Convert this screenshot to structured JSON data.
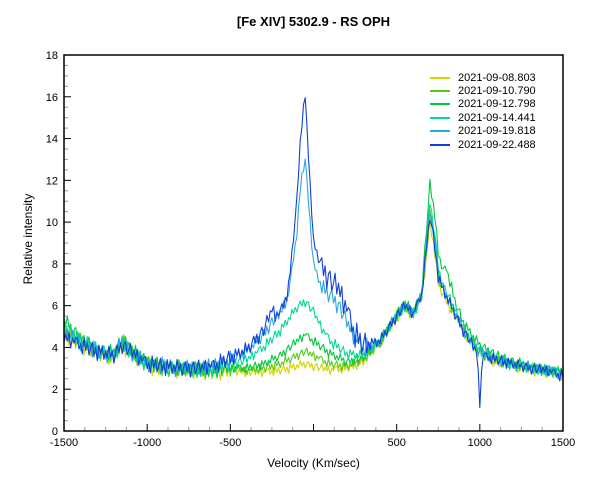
{
  "chart_data": {
    "type": "line",
    "title": "[Fe XIV] 5302.9 - RS OPH",
    "xlabel": "Velocity (Km/sec)",
    "ylabel": "Relative intensity",
    "legend_position": "top-right",
    "grid": false,
    "x_axis": {
      "min": -1500,
      "max": 1500,
      "major_step": 500,
      "minor_step": 125,
      "labeled_ticks": [
        -1500,
        -1000,
        -500,
        500,
        1000,
        1500
      ]
    },
    "y_axis": {
      "min": 0,
      "max": 18,
      "major_step": 2,
      "minor_step": 0.5,
      "labeled_ticks": [
        0,
        2,
        4,
        6,
        8,
        10,
        12,
        14,
        16,
        18
      ]
    },
    "sampling_step_kms": 10,
    "noise_table": [
      0.62,
      -0.48,
      0.2,
      -0.85,
      0.95,
      -0.3,
      0.55,
      -0.7,
      0.1,
      0.8,
      -0.55,
      0.35,
      -0.95,
      0.75,
      -0.15,
      0.6,
      -0.65,
      0.25,
      -0.4,
      0.9,
      -0.2,
      0.45,
      -0.75,
      0.15,
      0.7,
      -0.35,
      0.5,
      -0.9,
      0.3,
      0.65,
      -0.6,
      0.05,
      0.85,
      -0.45,
      0.4,
      -0.25,
      0.75,
      -0.8,
      0.35,
      -0.1,
      0.5
    ],
    "series": [
      {
        "name": "2021-09-08.803",
        "color": "#d4d400",
        "noise_offset": 0,
        "noise_zones": [
          [
            -1500,
            -500,
            0.42
          ],
          [
            -500,
            400,
            0.25
          ],
          [
            400,
            1500,
            0.3
          ]
        ],
        "anchors": [
          [
            -1500,
            4.6
          ],
          [
            -1400,
            4.1
          ],
          [
            -1300,
            3.7
          ],
          [
            -1200,
            3.5
          ],
          [
            -1150,
            4.0
          ],
          [
            -1100,
            3.7
          ],
          [
            -1000,
            3.1
          ],
          [
            -900,
            2.9
          ],
          [
            -800,
            2.9
          ],
          [
            -700,
            2.8
          ],
          [
            -600,
            2.8
          ],
          [
            -500,
            2.9
          ],
          [
            -400,
            2.8
          ],
          [
            -300,
            2.8
          ],
          [
            -200,
            2.9
          ],
          [
            -100,
            3.1
          ],
          [
            -50,
            3.2
          ],
          [
            0,
            3.1
          ],
          [
            100,
            2.9
          ],
          [
            200,
            3.0
          ],
          [
            300,
            3.3
          ],
          [
            400,
            4.2
          ],
          [
            500,
            5.4
          ],
          [
            550,
            5.9
          ],
          [
            600,
            5.5
          ],
          [
            650,
            6.4
          ],
          [
            675,
            8.0
          ],
          [
            700,
            10.0
          ],
          [
            725,
            8.8
          ],
          [
            750,
            7.0
          ],
          [
            775,
            6.6
          ],
          [
            800,
            6.2
          ],
          [
            850,
            5.5
          ],
          [
            900,
            4.8
          ],
          [
            950,
            4.2
          ],
          [
            1000,
            3.7
          ],
          [
            1100,
            3.3
          ],
          [
            1200,
            3.1
          ],
          [
            1300,
            2.9
          ],
          [
            1400,
            2.8
          ],
          [
            1500,
            2.7
          ]
        ]
      },
      {
        "name": "2021-09-10.790",
        "color": "#58cc14",
        "noise_offset": 9,
        "noise_zones": [
          [
            -1500,
            -500,
            0.42
          ],
          [
            -500,
            400,
            0.25
          ],
          [
            400,
            1500,
            0.3
          ]
        ],
        "anchors": [
          [
            -1500,
            4.9
          ],
          [
            -1400,
            4.3
          ],
          [
            -1300,
            3.8
          ],
          [
            -1200,
            3.6
          ],
          [
            -1150,
            4.3
          ],
          [
            -1100,
            3.8
          ],
          [
            -1000,
            3.2
          ],
          [
            -900,
            3.0
          ],
          [
            -800,
            3.0
          ],
          [
            -700,
            2.9
          ],
          [
            -600,
            2.9
          ],
          [
            -500,
            3.0
          ],
          [
            -400,
            2.9
          ],
          [
            -300,
            3.0
          ],
          [
            -200,
            3.2
          ],
          [
            -100,
            3.6
          ],
          [
            -50,
            3.8
          ],
          [
            0,
            3.6
          ],
          [
            100,
            3.2
          ],
          [
            200,
            3.1
          ],
          [
            300,
            3.4
          ],
          [
            400,
            4.3
          ],
          [
            500,
            5.5
          ],
          [
            550,
            6.0
          ],
          [
            600,
            5.6
          ],
          [
            650,
            6.5
          ],
          [
            675,
            8.3
          ],
          [
            700,
            10.4
          ],
          [
            725,
            9.2
          ],
          [
            750,
            7.3
          ],
          [
            775,
            6.8
          ],
          [
            800,
            6.4
          ],
          [
            850,
            5.6
          ],
          [
            900,
            4.9
          ],
          [
            950,
            4.3
          ],
          [
            1000,
            3.8
          ],
          [
            1100,
            3.4
          ],
          [
            1200,
            3.2
          ],
          [
            1300,
            3.0
          ],
          [
            1400,
            2.9
          ],
          [
            1500,
            2.8
          ]
        ]
      },
      {
        "name": "2021-09-12.798",
        "color": "#00c840",
        "noise_offset": 17,
        "noise_zones": [
          [
            -1500,
            -500,
            0.42
          ],
          [
            -500,
            400,
            0.25
          ],
          [
            400,
            1500,
            0.3
          ]
        ],
        "anchors": [
          [
            -1500,
            5.3
          ],
          [
            -1400,
            4.4
          ],
          [
            -1300,
            3.9
          ],
          [
            -1200,
            3.7
          ],
          [
            -1150,
            4.4
          ],
          [
            -1100,
            3.9
          ],
          [
            -1000,
            3.3
          ],
          [
            -900,
            3.1
          ],
          [
            -800,
            3.0
          ],
          [
            -700,
            3.0
          ],
          [
            -600,
            2.9
          ],
          [
            -500,
            3.0
          ],
          [
            -400,
            3.0
          ],
          [
            -300,
            3.2
          ],
          [
            -200,
            3.6
          ],
          [
            -100,
            4.3
          ],
          [
            -50,
            4.6
          ],
          [
            0,
            4.3
          ],
          [
            100,
            3.7
          ],
          [
            200,
            3.3
          ],
          [
            300,
            3.5
          ],
          [
            400,
            4.3
          ],
          [
            500,
            5.6
          ],
          [
            550,
            6.1
          ],
          [
            600,
            5.7
          ],
          [
            650,
            6.6
          ],
          [
            675,
            9.2
          ],
          [
            700,
            11.8
          ],
          [
            725,
            10.6
          ],
          [
            750,
            8.6
          ],
          [
            775,
            7.6
          ],
          [
            800,
            7.8
          ],
          [
            825,
            7.0
          ],
          [
            850,
            6.2
          ],
          [
            900,
            5.2
          ],
          [
            950,
            4.6
          ],
          [
            1000,
            4.1
          ],
          [
            1100,
            3.6
          ],
          [
            1200,
            3.3
          ],
          [
            1300,
            3.1
          ],
          [
            1400,
            2.9
          ],
          [
            1500,
            2.8
          ]
        ]
      },
      {
        "name": "2021-09-14.441",
        "color": "#00d894",
        "noise_offset": 5,
        "noise_zones": [
          [
            -1500,
            -500,
            0.42
          ],
          [
            -500,
            400,
            0.28
          ],
          [
            400,
            1500,
            0.3
          ]
        ],
        "anchors": [
          [
            -1500,
            5.0
          ],
          [
            -1400,
            4.3
          ],
          [
            -1300,
            3.9
          ],
          [
            -1200,
            3.6
          ],
          [
            -1150,
            4.2
          ],
          [
            -1100,
            3.8
          ],
          [
            -1000,
            3.2
          ],
          [
            -900,
            3.0
          ],
          [
            -800,
            3.0
          ],
          [
            -700,
            2.9
          ],
          [
            -600,
            3.0
          ],
          [
            -500,
            3.2
          ],
          [
            -400,
            3.4
          ],
          [
            -300,
            4.0
          ],
          [
            -200,
            4.8
          ],
          [
            -100,
            5.9
          ],
          [
            -50,
            6.2
          ],
          [
            0,
            5.7
          ],
          [
            50,
            4.9
          ],
          [
            100,
            4.3
          ],
          [
            200,
            3.7
          ],
          [
            300,
            3.6
          ],
          [
            400,
            4.3
          ],
          [
            500,
            5.5
          ],
          [
            550,
            6.0
          ],
          [
            600,
            5.6
          ],
          [
            650,
            6.5
          ],
          [
            675,
            8.7
          ],
          [
            700,
            10.9
          ],
          [
            725,
            9.7
          ],
          [
            750,
            7.8
          ],
          [
            775,
            7.0
          ],
          [
            800,
            6.6
          ],
          [
            850,
            5.8
          ],
          [
            900,
            4.9
          ],
          [
            950,
            4.3
          ],
          [
            1000,
            3.8
          ],
          [
            1100,
            3.4
          ],
          [
            1200,
            3.2
          ],
          [
            1300,
            3.0
          ],
          [
            1400,
            2.9
          ],
          [
            1500,
            2.8
          ]
        ]
      },
      {
        "name": "2021-09-19.818",
        "color": "#29a8e0",
        "noise_offset": 27,
        "noise_zones": [
          [
            -1500,
            -500,
            0.45
          ],
          [
            -500,
            -150,
            0.35
          ],
          [
            -150,
            30,
            0.25
          ],
          [
            30,
            320,
            0.5
          ],
          [
            320,
            1500,
            0.32
          ]
        ],
        "anchors": [
          [
            -1500,
            4.7
          ],
          [
            -1400,
            4.2
          ],
          [
            -1300,
            3.8
          ],
          [
            -1200,
            3.6
          ],
          [
            -1150,
            4.2
          ],
          [
            -1100,
            3.8
          ],
          [
            -1000,
            3.2
          ],
          [
            -900,
            3.1
          ],
          [
            -800,
            3.0
          ],
          [
            -700,
            3.0
          ],
          [
            -600,
            3.1
          ],
          [
            -500,
            3.4
          ],
          [
            -400,
            3.8
          ],
          [
            -300,
            4.6
          ],
          [
            -250,
            5.2
          ],
          [
            -200,
            5.6
          ],
          [
            -150,
            6.5
          ],
          [
            -100,
            9.5
          ],
          [
            -75,
            12.0
          ],
          [
            -50,
            13.0
          ],
          [
            -25,
            10.5
          ],
          [
            0,
            8.0
          ],
          [
            50,
            6.8
          ],
          [
            100,
            6.5
          ],
          [
            150,
            6.0
          ],
          [
            200,
            5.2
          ],
          [
            250,
            4.4
          ],
          [
            300,
            3.9
          ],
          [
            400,
            4.3
          ],
          [
            500,
            5.5
          ],
          [
            550,
            6.0
          ],
          [
            600,
            5.6
          ],
          [
            650,
            6.5
          ],
          [
            675,
            8.6
          ],
          [
            700,
            10.6
          ],
          [
            725,
            9.4
          ],
          [
            750,
            7.6
          ],
          [
            775,
            6.9
          ],
          [
            800,
            6.5
          ],
          [
            850,
            5.7
          ],
          [
            900,
            4.8
          ],
          [
            950,
            4.2
          ],
          [
            1000,
            3.8
          ],
          [
            1100,
            3.4
          ],
          [
            1200,
            3.2
          ],
          [
            1300,
            3.0
          ],
          [
            1400,
            2.9
          ],
          [
            1500,
            2.7
          ]
        ]
      },
      {
        "name": "2021-09-22.488",
        "color": "#1141d6",
        "noise_offset": 33,
        "noise_zones": [
          [
            -1500,
            -500,
            0.45
          ],
          [
            -500,
            -150,
            0.4
          ],
          [
            -150,
            30,
            0.3
          ],
          [
            30,
            320,
            0.7
          ],
          [
            320,
            980,
            0.32
          ],
          [
            980,
            1020,
            0.1
          ],
          [
            1020,
            1500,
            0.3
          ]
        ],
        "anchors": [
          [
            -1500,
            4.5
          ],
          [
            -1400,
            4.1
          ],
          [
            -1300,
            3.8
          ],
          [
            -1200,
            3.6
          ],
          [
            -1150,
            4.1
          ],
          [
            -1100,
            3.8
          ],
          [
            -1000,
            3.2
          ],
          [
            -900,
            3.1
          ],
          [
            -800,
            3.0
          ],
          [
            -700,
            3.0
          ],
          [
            -600,
            3.1
          ],
          [
            -500,
            3.5
          ],
          [
            -400,
            3.9
          ],
          [
            -300,
            4.8
          ],
          [
            -250,
            5.8
          ],
          [
            -225,
            5.5
          ],
          [
            -200,
            5.6
          ],
          [
            -150,
            6.8
          ],
          [
            -100,
            11.0
          ],
          [
            -75,
            14.5
          ],
          [
            -50,
            16.0
          ],
          [
            -25,
            12.5
          ],
          [
            0,
            9.0
          ],
          [
            50,
            7.8
          ],
          [
            100,
            7.2
          ],
          [
            150,
            6.8
          ],
          [
            200,
            5.8
          ],
          [
            250,
            4.6
          ],
          [
            300,
            4.1
          ],
          [
            400,
            4.3
          ],
          [
            500,
            5.5
          ],
          [
            550,
            6.0
          ],
          [
            600,
            5.6
          ],
          [
            650,
            6.5
          ],
          [
            675,
            8.4
          ],
          [
            700,
            10.3
          ],
          [
            725,
            9.1
          ],
          [
            750,
            7.4
          ],
          [
            775,
            6.8
          ],
          [
            800,
            6.4
          ],
          [
            850,
            5.6
          ],
          [
            900,
            4.8
          ],
          [
            950,
            4.2
          ],
          [
            985,
            3.7
          ],
          [
            1000,
            1.2
          ],
          [
            1015,
            3.6
          ],
          [
            1100,
            3.4
          ],
          [
            1200,
            3.2
          ],
          [
            1300,
            3.0
          ],
          [
            1400,
            2.9
          ],
          [
            1500,
            2.6
          ]
        ]
      }
    ]
  }
}
